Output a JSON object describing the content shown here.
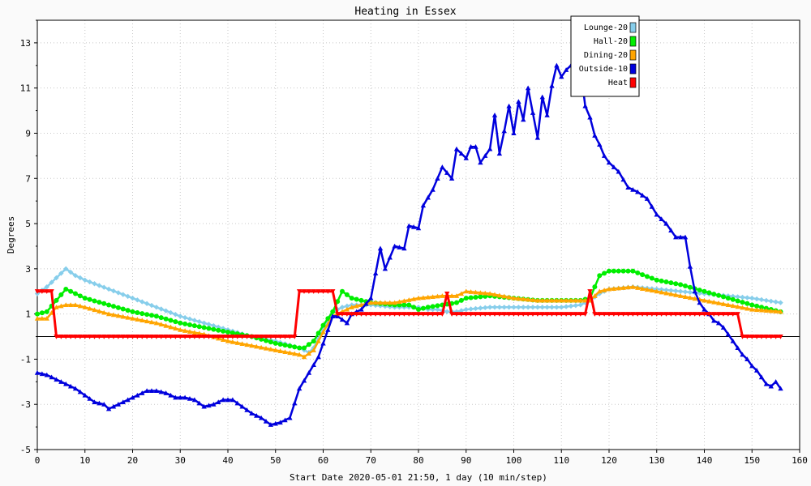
{
  "chart_data": {
    "type": "line",
    "title": "Heating in Essex",
    "xlabel": "Start Date 2020-05-01 21:50, 1 day (10 min/step)",
    "ylabel": "Degrees",
    "xlim": [
      0,
      160
    ],
    "ylim": [
      -5,
      14
    ],
    "x_ticks": [
      0,
      10,
      20,
      30,
      40,
      50,
      60,
      70,
      80,
      90,
      100,
      110,
      120,
      130,
      140,
      150,
      160
    ],
    "y_ticks": [
      -5,
      -3,
      -1,
      1,
      3,
      5,
      7,
      9,
      11,
      13
    ],
    "grid": true,
    "legend_position": "top-right",
    "series": [
      {
        "name": "Lounge-20",
        "color": "#87ceeb",
        "marker": "diamond",
        "points": [
          [
            0,
            1.9
          ],
          [
            2,
            2.2
          ],
          [
            4,
            2.6
          ],
          [
            6,
            3.0
          ],
          [
            8,
            2.7
          ],
          [
            10,
            2.5
          ],
          [
            15,
            2.1
          ],
          [
            20,
            1.7
          ],
          [
            25,
            1.3
          ],
          [
            30,
            0.9
          ],
          [
            35,
            0.6
          ],
          [
            40,
            0.3
          ],
          [
            45,
            0.0
          ],
          [
            50,
            -0.2
          ],
          [
            55,
            -0.5
          ],
          [
            57,
            -0.7
          ],
          [
            58,
            -0.5
          ],
          [
            60,
            0.3
          ],
          [
            62,
            1.1
          ],
          [
            64,
            1.3
          ],
          [
            66,
            1.4
          ],
          [
            70,
            1.4
          ],
          [
            75,
            1.3
          ],
          [
            80,
            1.3
          ],
          [
            82,
            1.2
          ],
          [
            84,
            1.2
          ],
          [
            86,
            1.1
          ],
          [
            88,
            1.1
          ],
          [
            90,
            1.2
          ],
          [
            95,
            1.3
          ],
          [
            100,
            1.3
          ],
          [
            105,
            1.3
          ],
          [
            110,
            1.3
          ],
          [
            114,
            1.4
          ],
          [
            116,
            1.6
          ],
          [
            118,
            1.9
          ],
          [
            120,
            2.1
          ],
          [
            125,
            2.2
          ],
          [
            130,
            2.1
          ],
          [
            135,
            2.0
          ],
          [
            140,
            1.9
          ],
          [
            145,
            1.8
          ],
          [
            150,
            1.7
          ],
          [
            156,
            1.5
          ]
        ]
      },
      {
        "name": "Hall-20",
        "color": "#00ee00",
        "marker": "circle",
        "points": [
          [
            0,
            1.0
          ],
          [
            2,
            1.1
          ],
          [
            4,
            1.6
          ],
          [
            6,
            2.1
          ],
          [
            8,
            1.9
          ],
          [
            10,
            1.7
          ],
          [
            15,
            1.4
          ],
          [
            20,
            1.1
          ],
          [
            25,
            0.9
          ],
          [
            30,
            0.6
          ],
          [
            35,
            0.4
          ],
          [
            40,
            0.2
          ],
          [
            45,
            0.0
          ],
          [
            50,
            -0.3
          ],
          [
            55,
            -0.5
          ],
          [
            56,
            -0.5
          ],
          [
            58,
            -0.2
          ],
          [
            60,
            0.5
          ],
          [
            62,
            1.1
          ],
          [
            64,
            2.0
          ],
          [
            66,
            1.7
          ],
          [
            68,
            1.6
          ],
          [
            70,
            1.5
          ],
          [
            75,
            1.4
          ],
          [
            78,
            1.4
          ],
          [
            80,
            1.2
          ],
          [
            82,
            1.3
          ],
          [
            85,
            1.4
          ],
          [
            88,
            1.5
          ],
          [
            90,
            1.7
          ],
          [
            95,
            1.8
          ],
          [
            100,
            1.7
          ],
          [
            105,
            1.6
          ],
          [
            110,
            1.6
          ],
          [
            114,
            1.6
          ],
          [
            116,
            1.7
          ],
          [
            118,
            2.7
          ],
          [
            120,
            2.9
          ],
          [
            125,
            2.9
          ],
          [
            130,
            2.5
          ],
          [
            135,
            2.3
          ],
          [
            140,
            2.0
          ],
          [
            145,
            1.7
          ],
          [
            150,
            1.4
          ],
          [
            156,
            1.1
          ]
        ]
      },
      {
        "name": "Dining-20",
        "color": "#ffa500",
        "marker": "triangle",
        "points": [
          [
            0,
            0.8
          ],
          [
            2,
            0.8
          ],
          [
            4,
            1.3
          ],
          [
            6,
            1.4
          ],
          [
            8,
            1.4
          ],
          [
            10,
            1.3
          ],
          [
            15,
            1.0
          ],
          [
            20,
            0.8
          ],
          [
            25,
            0.6
          ],
          [
            30,
            0.3
          ],
          [
            35,
            0.1
          ],
          [
            40,
            -0.2
          ],
          [
            45,
            -0.4
          ],
          [
            50,
            -0.6
          ],
          [
            55,
            -0.8
          ],
          [
            56,
            -0.9
          ],
          [
            58,
            -0.6
          ],
          [
            60,
            0.2
          ],
          [
            62,
            0.9
          ],
          [
            64,
            1.1
          ],
          [
            66,
            1.3
          ],
          [
            68,
            1.4
          ],
          [
            70,
            1.5
          ],
          [
            75,
            1.5
          ],
          [
            80,
            1.7
          ],
          [
            85,
            1.8
          ],
          [
            88,
            1.8
          ],
          [
            90,
            2.0
          ],
          [
            95,
            1.9
          ],
          [
            100,
            1.7
          ],
          [
            105,
            1.6
          ],
          [
            110,
            1.6
          ],
          [
            114,
            1.6
          ],
          [
            116,
            1.6
          ],
          [
            118,
            2.0
          ],
          [
            120,
            2.1
          ],
          [
            125,
            2.2
          ],
          [
            130,
            2.0
          ],
          [
            135,
            1.8
          ],
          [
            140,
            1.6
          ],
          [
            145,
            1.4
          ],
          [
            150,
            1.2
          ],
          [
            156,
            1.1
          ]
        ]
      },
      {
        "name": "Outside-10",
        "color": "#0000dd",
        "marker": "triangle",
        "points": [
          [
            0,
            -1.6
          ],
          [
            2,
            -1.7
          ],
          [
            4,
            -1.9
          ],
          [
            6,
            -2.1
          ],
          [
            8,
            -2.3
          ],
          [
            10,
            -2.6
          ],
          [
            12,
            -2.9
          ],
          [
            14,
            -3.0
          ],
          [
            15,
            -3.2
          ],
          [
            17,
            -3.0
          ],
          [
            19,
            -2.8
          ],
          [
            21,
            -2.6
          ],
          [
            23,
            -2.4
          ],
          [
            25,
            -2.4
          ],
          [
            27,
            -2.5
          ],
          [
            29,
            -2.7
          ],
          [
            31,
            -2.7
          ],
          [
            33,
            -2.8
          ],
          [
            35,
            -3.1
          ],
          [
            37,
            -3.0
          ],
          [
            39,
            -2.8
          ],
          [
            41,
            -2.8
          ],
          [
            43,
            -3.1
          ],
          [
            45,
            -3.4
          ],
          [
            47,
            -3.6
          ],
          [
            49,
            -3.9
          ],
          [
            51,
            -3.8
          ],
          [
            53,
            -3.6
          ],
          [
            55,
            -2.3
          ],
          [
            57,
            -1.6
          ],
          [
            59,
            -0.9
          ],
          [
            61,
            0.3
          ],
          [
            62,
            0.9
          ],
          [
            63,
            0.9
          ],
          [
            65,
            0.6
          ],
          [
            66,
            1.0
          ],
          [
            68,
            1.2
          ],
          [
            70,
            1.7
          ],
          [
            72,
            3.9
          ],
          [
            73,
            3.0
          ],
          [
            75,
            4.0
          ],
          [
            77,
            3.9
          ],
          [
            78,
            4.9
          ],
          [
            80,
            4.8
          ],
          [
            81,
            5.8
          ],
          [
            83,
            6.5
          ],
          [
            85,
            7.5
          ],
          [
            87,
            7.0
          ],
          [
            88,
            8.3
          ],
          [
            90,
            7.9
          ],
          [
            91,
            8.4
          ],
          [
            92,
            8.4
          ],
          [
            93,
            7.7
          ],
          [
            95,
            8.3
          ],
          [
            96,
            9.8
          ],
          [
            97,
            8.1
          ],
          [
            98,
            9.1
          ],
          [
            99,
            10.2
          ],
          [
            100,
            9.0
          ],
          [
            101,
            10.4
          ],
          [
            102,
            9.6
          ],
          [
            103,
            11.0
          ],
          [
            104,
            9.9
          ],
          [
            105,
            8.8
          ],
          [
            106,
            10.6
          ],
          [
            107,
            9.8
          ],
          [
            108,
            11.1
          ],
          [
            109,
            12.0
          ],
          [
            110,
            11.5
          ],
          [
            111,
            11.8
          ],
          [
            112,
            12.0
          ],
          [
            113,
            11.3
          ],
          [
            114,
            11.9
          ],
          [
            115,
            10.2
          ],
          [
            116,
            9.7
          ],
          [
            117,
            8.9
          ],
          [
            118,
            8.5
          ],
          [
            119,
            8.0
          ],
          [
            120,
            7.7
          ],
          [
            122,
            7.3
          ],
          [
            124,
            6.6
          ],
          [
            126,
            6.4
          ],
          [
            128,
            6.1
          ],
          [
            130,
            5.4
          ],
          [
            132,
            5.0
          ],
          [
            134,
            4.4
          ],
          [
            136,
            4.4
          ],
          [
            137,
            3.1
          ],
          [
            138,
            2.0
          ],
          [
            139,
            1.5
          ],
          [
            140,
            1.2
          ],
          [
            141,
            1.0
          ],
          [
            142,
            0.7
          ],
          [
            143,
            0.6
          ],
          [
            144,
            0.4
          ],
          [
            145,
            0.1
          ],
          [
            146,
            -0.2
          ],
          [
            147,
            -0.5
          ],
          [
            148,
            -0.8
          ],
          [
            149,
            -1.0
          ],
          [
            150,
            -1.3
          ],
          [
            151,
            -1.5
          ],
          [
            152,
            -1.8
          ],
          [
            153,
            -2.1
          ],
          [
            154,
            -2.2
          ],
          [
            155,
            -2.0
          ],
          [
            156,
            -2.3
          ]
        ]
      },
      {
        "name": "Heat",
        "color": "#ff0000",
        "marker": "triangle-down",
        "points": [
          [
            0,
            2
          ],
          [
            3,
            2
          ],
          [
            4,
            0
          ],
          [
            54,
            0
          ],
          [
            55,
            2
          ],
          [
            62,
            2
          ],
          [
            63,
            1
          ],
          [
            85,
            1
          ],
          [
            86,
            1.9
          ],
          [
            87,
            1
          ],
          [
            115,
            1
          ],
          [
            116,
            2
          ],
          [
            117,
            1
          ],
          [
            147,
            1
          ],
          [
            148,
            0
          ],
          [
            156,
            0
          ]
        ]
      }
    ]
  }
}
